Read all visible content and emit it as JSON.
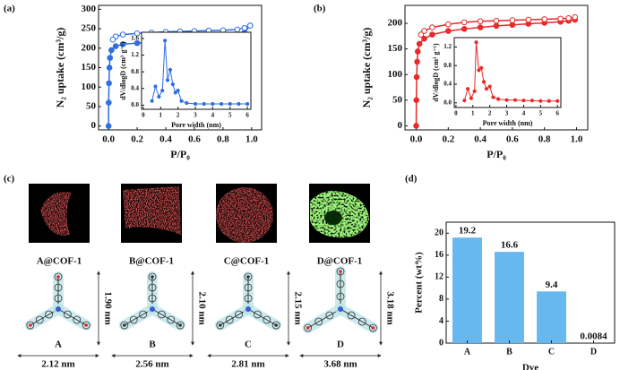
{
  "panel_labels": [
    "(a)",
    "(b)",
    "(c)",
    "(d)"
  ],
  "panel_c": {
    "samples": [
      "A@COF-1",
      "B@COF-1",
      "C@COF-1",
      "D@COF-1"
    ],
    "molecules": [
      {
        "label": "A",
        "width": "2.12 nm",
        "height": "1.90 nm"
      },
      {
        "label": "B",
        "width": "2.56 nm",
        "height": "2.10 nm"
      },
      {
        "label": "C",
        "width": "2.81 nm",
        "height": "2.15 nm"
      },
      {
        "label": "D",
        "width": "3.68 nm",
        "height": "3.18 nm"
      }
    ]
  },
  "chart_data": [
    {
      "type": "line",
      "x_label": "P/P₀",
      "y_label": "N₂ uptake (cm³/g)",
      "xlim": [
        -0.07,
        1.07
      ],
      "ylim": [
        -10,
        310
      ],
      "xticks": [
        {
          "value": 0,
          "label": "0.0"
        },
        0.2,
        0.4,
        0.6,
        0.8,
        {
          "value": 1,
          "label": "1.0"
        }
      ],
      "yticks": [
        0,
        50,
        100,
        150,
        200,
        250,
        300
      ],
      "series": [
        {
          "color": "#2f6fe0",
          "marker": "filled",
          "x": [
            0,
            0.001,
            0.003,
            0.006,
            0.01,
            0.02,
            0.05,
            0.1,
            0.2,
            0.3,
            0.4,
            0.5,
            0.6,
            0.7,
            0.8,
            0.9,
            0.95,
            0.99
          ],
          "values": [
            0,
            60,
            110,
            150,
            175,
            195,
            205,
            210,
            213,
            215,
            217,
            218,
            220,
            222,
            225,
            230,
            240,
            258
          ]
        },
        {
          "color": "#2f6fe0",
          "marker": "open",
          "x": [
            0.99,
            0.95,
            0.9,
            0.8,
            0.7,
            0.6,
            0.5,
            0.4,
            0.3,
            0.2,
            0.1,
            0.05,
            0.03
          ],
          "values": [
            258,
            252,
            248,
            246,
            245,
            244,
            243,
            242,
            240,
            238,
            235,
            230,
            222
          ]
        }
      ]
    },
    {
      "type": "line",
      "x_label": "Pore width (nm)",
      "y_label": "dV/dlogD (cm³ g⁻¹)",
      "xlim": [
        -0.1,
        6.2
      ],
      "ylim": [
        -0.1,
        1.75
      ],
      "xticks": [
        0,
        1,
        2,
        3,
        4,
        5,
        6
      ],
      "yticks": [
        {
          "value": 0,
          "label": "0.0"
        },
        0.4,
        0.8,
        1.2,
        1.6
      ],
      "series": [
        {
          "color": "#2f6fe0",
          "marker": "filled",
          "x": [
            0.5,
            0.7,
            0.9,
            1.1,
            1.25,
            1.4,
            1.55,
            1.7,
            1.85,
            2.0,
            2.2,
            2.5,
            3,
            3.5,
            4,
            4.5,
            5,
            5.5,
            6
          ],
          "values": [
            0.1,
            0.45,
            0.2,
            0.35,
            1.55,
            0.6,
            0.85,
            0.5,
            0.3,
            0.35,
            0.1,
            0.05,
            0.03,
            0.03,
            0.03,
            0.03,
            0.03,
            0.03,
            0.03
          ]
        }
      ]
    },
    {
      "type": "line",
      "x_label": "P/P₀",
      "y_label": "N₂ uptake (cm³/g)",
      "xlim": [
        -0.07,
        1.07
      ],
      "ylim": [
        -8,
        235
      ],
      "xticks": [
        {
          "value": 0,
          "label": "0.0"
        },
        0.2,
        0.4,
        0.6,
        0.8,
        {
          "value": 1,
          "label": "1.0"
        }
      ],
      "yticks": [
        0,
        50,
        100,
        150,
        200
      ],
      "series": [
        {
          "color": "#e82a2a",
          "marker": "filled",
          "x": [
            0,
            0.001,
            0.003,
            0.006,
            0.01,
            0.02,
            0.05,
            0.1,
            0.2,
            0.3,
            0.4,
            0.5,
            0.6,
            0.7,
            0.8,
            0.9,
            0.95,
            0.99
          ],
          "values": [
            0,
            50,
            95,
            125,
            145,
            160,
            170,
            178,
            185,
            189,
            192,
            195,
            197,
            199,
            201,
            203,
            205,
            207
          ]
        },
        {
          "color": "#e82a2a",
          "marker": "open",
          "x": [
            0.99,
            0.95,
            0.9,
            0.8,
            0.7,
            0.6,
            0.5,
            0.4,
            0.3,
            0.2,
            0.1,
            0.05,
            0.03
          ],
          "values": [
            212,
            210,
            209,
            208,
            207,
            206,
            205,
            204,
            202,
            198,
            192,
            185,
            178
          ]
        }
      ]
    },
    {
      "type": "line",
      "x_label": "Pore width (nm)",
      "y_label": "dV/dlogD (cm³ g⁻¹)",
      "xlim": [
        -0.1,
        6.2
      ],
      "ylim": [
        -0.1,
        1.4
      ],
      "xticks": [
        0,
        1,
        2,
        3,
        4,
        5,
        6
      ],
      "yticks": [
        {
          "value": 0,
          "label": "0.0"
        },
        0.4,
        0.8,
        1.2
      ],
      "series": [
        {
          "color": "#e82a2a",
          "marker": "filled",
          "x": [
            0.5,
            0.7,
            0.9,
            1.1,
            1.2,
            1.35,
            1.5,
            1.65,
            1.8,
            2.0,
            2.2,
            2.5,
            3,
            3.5,
            4,
            4.5,
            5,
            5.5,
            6
          ],
          "values": [
            0.05,
            0.3,
            0.1,
            0.25,
            1.3,
            0.7,
            0.75,
            0.45,
            0.3,
            0.35,
            0.12,
            0.08,
            0.06,
            0.06,
            0.05,
            0.05,
            0.04,
            0.04,
            0.04
          ]
        }
      ]
    },
    {
      "type": "bar",
      "x_label": "Dye",
      "y_label": "Percent (wt%)",
      "categories": [
        "A",
        "B",
        "C",
        "D"
      ],
      "values": [
        19.2,
        16.6,
        9.4,
        0.0084
      ],
      "color": "#66b8ef",
      "ylim": [
        0,
        22
      ],
      "yticks": [
        0,
        4,
        8,
        12,
        16,
        20
      ]
    }
  ]
}
